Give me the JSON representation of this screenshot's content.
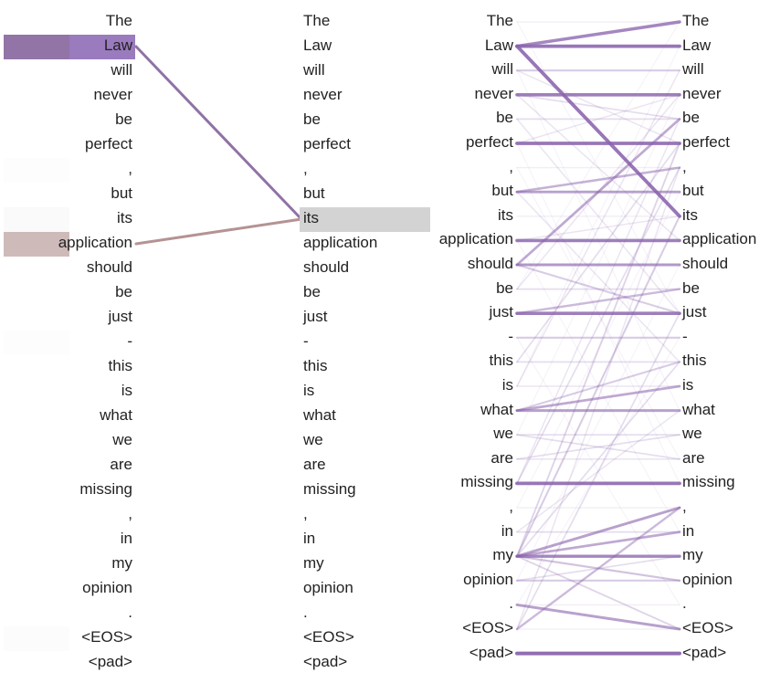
{
  "tokens": [
    "The",
    "Law",
    "will",
    "never",
    "be",
    "perfect",
    ",",
    "but",
    "its",
    "application",
    "should",
    "be",
    "just",
    "-",
    "this",
    "is",
    "what",
    "we",
    "are",
    "missing",
    ",",
    "in",
    "my",
    "opinion",
    ".",
    "<EOS>",
    "<pad>"
  ],
  "left_panel": {
    "query_token_index": 8,
    "highlight_color": "#d3d3d3",
    "attention": [
      {
        "token": 0,
        "weight": 0.0,
        "color": "#bfa9a9"
      },
      {
        "token": 1,
        "weight": 0.85,
        "color": "#8a6aa0"
      },
      {
        "token": 6,
        "weight": 0.03,
        "color": "#c9b8c9"
      },
      {
        "token": 8,
        "weight": 0.06,
        "color": "#c9b8c9"
      },
      {
        "token": 9,
        "weight": 0.55,
        "color": "#b08d8d"
      },
      {
        "token": 13,
        "weight": 0.03,
        "color": "#c9b8c9"
      },
      {
        "token": 25,
        "weight": 0.04,
        "color": "#c9b8c9"
      }
    ]
  },
  "right_panel": {
    "line_color": "#8a63ad",
    "links": [
      {
        "from": 0,
        "to": 0,
        "weight": 0.1
      },
      {
        "from": 1,
        "to": 0,
        "weight": 0.7
      },
      {
        "from": 1,
        "to": 1,
        "weight": 0.8
      },
      {
        "from": 1,
        "to": 8,
        "weight": 0.8
      },
      {
        "from": 2,
        "to": 2,
        "weight": 0.3
      },
      {
        "from": 2,
        "to": 5,
        "weight": 0.15
      },
      {
        "from": 3,
        "to": 3,
        "weight": 0.75
      },
      {
        "from": 3,
        "to": 4,
        "weight": 0.2
      },
      {
        "from": 3,
        "to": 9,
        "weight": 0.15
      },
      {
        "from": 4,
        "to": 4,
        "weight": 0.2
      },
      {
        "from": 4,
        "to": 12,
        "weight": 0.15
      },
      {
        "from": 5,
        "to": 5,
        "weight": 0.8
      },
      {
        "from": 5,
        "to": 3,
        "weight": 0.15
      },
      {
        "from": 6,
        "to": 6,
        "weight": 0.1
      },
      {
        "from": 7,
        "to": 7,
        "weight": 0.55
      },
      {
        "from": 7,
        "to": 6,
        "weight": 0.45
      },
      {
        "from": 7,
        "to": 14,
        "weight": 0.15
      },
      {
        "from": 8,
        "to": 8,
        "weight": 0.1
      },
      {
        "from": 9,
        "to": 9,
        "weight": 0.75
      },
      {
        "from": 9,
        "to": 8,
        "weight": 0.15
      },
      {
        "from": 10,
        "to": 10,
        "weight": 0.6
      },
      {
        "from": 10,
        "to": 4,
        "weight": 0.5
      },
      {
        "from": 10,
        "to": 12,
        "weight": 0.3
      },
      {
        "from": 11,
        "to": 11,
        "weight": 0.2
      },
      {
        "from": 11,
        "to": 3,
        "weight": 0.15
      },
      {
        "from": 12,
        "to": 12,
        "weight": 0.75
      },
      {
        "from": 12,
        "to": 11,
        "weight": 0.4
      },
      {
        "from": 13,
        "to": 13,
        "weight": 0.3
      },
      {
        "from": 14,
        "to": 14,
        "weight": 0.2
      },
      {
        "from": 14,
        "to": 5,
        "weight": 0.2
      },
      {
        "from": 15,
        "to": 15,
        "weight": 0.15
      },
      {
        "from": 15,
        "to": 2,
        "weight": 0.15
      },
      {
        "from": 16,
        "to": 16,
        "weight": 0.55
      },
      {
        "from": 16,
        "to": 15,
        "weight": 0.5
      },
      {
        "from": 16,
        "to": 14,
        "weight": 0.3
      },
      {
        "from": 17,
        "to": 17,
        "weight": 0.2
      },
      {
        "from": 17,
        "to": 18,
        "weight": 0.2
      },
      {
        "from": 18,
        "to": 18,
        "weight": 0.15
      },
      {
        "from": 18,
        "to": 17,
        "weight": 0.2
      },
      {
        "from": 19,
        "to": 19,
        "weight": 0.8
      },
      {
        "from": 19,
        "to": 6,
        "weight": 0.2
      },
      {
        "from": 19,
        "to": 4,
        "weight": 0.15
      },
      {
        "from": 20,
        "to": 20,
        "weight": 0.1
      },
      {
        "from": 21,
        "to": 21,
        "weight": 0.2
      },
      {
        "from": 21,
        "to": 16,
        "weight": 0.15
      },
      {
        "from": 22,
        "to": 22,
        "weight": 0.7
      },
      {
        "from": 22,
        "to": 20,
        "weight": 0.55
      },
      {
        "from": 22,
        "to": 21,
        "weight": 0.5
      },
      {
        "from": 22,
        "to": 23,
        "weight": 0.35
      },
      {
        "from": 22,
        "to": 25,
        "weight": 0.25
      },
      {
        "from": 22,
        "to": 8,
        "weight": 0.3
      },
      {
        "from": 22,
        "to": 5,
        "weight": 0.25
      },
      {
        "from": 22,
        "to": 14,
        "weight": 0.2
      },
      {
        "from": 23,
        "to": 23,
        "weight": 0.3
      },
      {
        "from": 23,
        "to": 22,
        "weight": 0.2
      },
      {
        "from": 24,
        "to": 24,
        "weight": 0.1
      },
      {
        "from": 24,
        "to": 25,
        "weight": 0.55
      },
      {
        "from": 25,
        "to": 25,
        "weight": 0.1
      },
      {
        "from": 25,
        "to": 20,
        "weight": 0.4
      },
      {
        "from": 25,
        "to": 12,
        "weight": 0.2
      },
      {
        "from": 25,
        "to": 6,
        "weight": 0.15
      },
      {
        "from": 26,
        "to": 26,
        "weight": 0.85
      },
      {
        "from": 0,
        "to": 12,
        "weight": 0.06
      },
      {
        "from": 2,
        "to": 16,
        "weight": 0.06
      },
      {
        "from": 6,
        "to": 18,
        "weight": 0.06
      },
      {
        "from": 9,
        "to": 21,
        "weight": 0.06
      },
      {
        "from": 13,
        "to": 24,
        "weight": 0.06
      },
      {
        "from": 17,
        "to": 3,
        "weight": 0.06
      },
      {
        "from": 20,
        "to": 7,
        "weight": 0.06
      },
      {
        "from": 23,
        "to": 10,
        "weight": 0.06
      },
      {
        "from": 11,
        "to": 0,
        "weight": 0.06
      },
      {
        "from": 5,
        "to": 19,
        "weight": 0.06
      },
      {
        "from": 15,
        "to": 1,
        "weight": 0.06
      },
      {
        "from": 24,
        "to": 13,
        "weight": 0.06
      }
    ]
  }
}
